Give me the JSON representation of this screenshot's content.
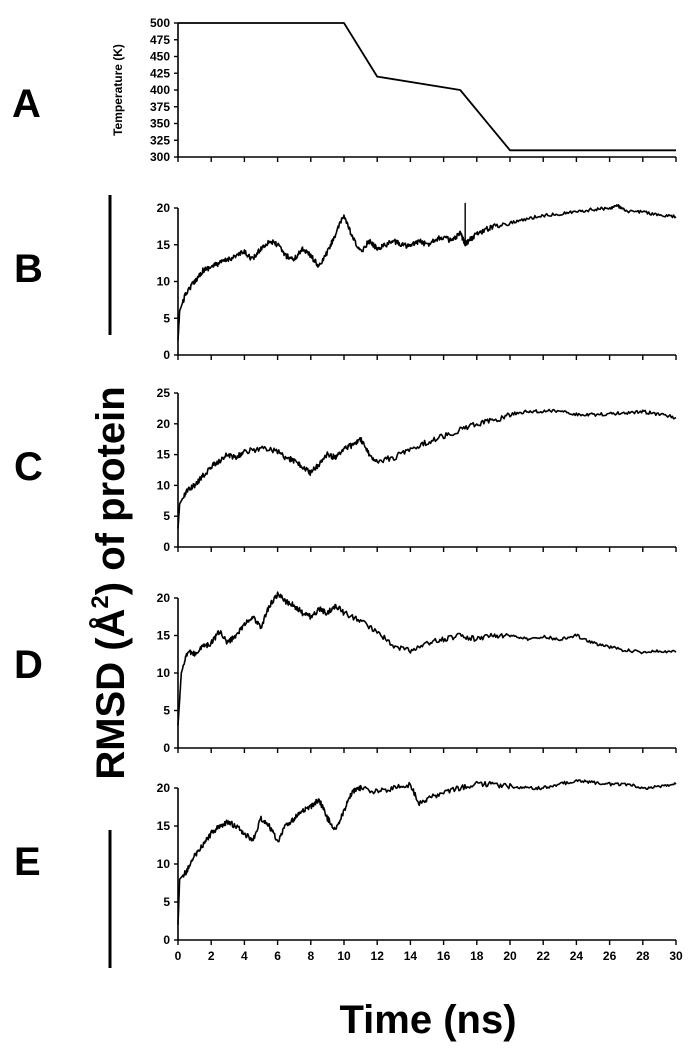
{
  "chart_data": [
    {
      "type": "line",
      "panel": "A",
      "ylabel": "Temperature (K)",
      "xlim": [
        0,
        30
      ],
      "ylim": [
        300,
        500
      ],
      "yticks": [
        300,
        325,
        350,
        375,
        400,
        425,
        450,
        475,
        500
      ],
      "x": [
        0,
        10,
        12,
        17,
        20,
        30
      ],
      "values": [
        500,
        500,
        420,
        400,
        310,
        310
      ]
    },
    {
      "type": "line",
      "panel": "B",
      "xlim": [
        0,
        30
      ],
      "ylim": [
        0,
        20
      ],
      "yticks": [
        0,
        5,
        10,
        15,
        20
      ],
      "x": [
        0,
        0.1,
        0.5,
        1,
        1.5,
        2,
        2.5,
        3,
        3.5,
        4,
        4.5,
        5,
        5.5,
        6,
        6.5,
        7,
        7.5,
        8,
        8.5,
        9,
        9.5,
        10,
        10.5,
        11,
        11.5,
        12,
        12.5,
        13,
        13.5,
        14,
        14.5,
        15,
        15.5,
        16,
        16.5,
        17,
        17.3,
        17.5,
        18,
        18.5,
        19,
        20,
        21,
        22,
        23,
        24,
        25,
        26,
        26.5,
        27,
        28,
        29,
        30
      ],
      "values": [
        2,
        6,
        8.5,
        10,
        11.5,
        12,
        12.5,
        13,
        13.5,
        14,
        13,
        14.5,
        15.5,
        15,
        13.5,
        13,
        14.5,
        13.5,
        12,
        14,
        16.5,
        19,
        16,
        14,
        15.5,
        14.5,
        15,
        15.5,
        15,
        14.8,
        15.5,
        15,
        15.8,
        16,
        15.5,
        16.5,
        15.2,
        15.5,
        16.5,
        17,
        17.5,
        18,
        18.5,
        19,
        19.2,
        19.5,
        19.8,
        20,
        20.3,
        19.5,
        19.5,
        19,
        18.8
      ]
    },
    {
      "type": "line",
      "panel": "C",
      "xlim": [
        0,
        30
      ],
      "ylim": [
        0,
        25
      ],
      "yticks": [
        0,
        5,
        10,
        15,
        20,
        25
      ],
      "x": [
        0,
        0.1,
        0.5,
        1,
        1.5,
        2,
        2.5,
        3,
        3.5,
        4,
        5,
        6,
        6.5,
        7,
        7.5,
        8,
        8.5,
        9,
        9.5,
        10,
        10.5,
        11,
        11.5,
        12,
        13,
        14,
        15,
        16,
        17,
        18,
        19,
        20,
        21,
        22,
        23,
        24,
        25,
        26,
        27,
        28,
        29,
        30
      ],
      "values": [
        3,
        7,
        9,
        10,
        11.5,
        13,
        14,
        15,
        14.5,
        15.5,
        16,
        15.5,
        14.5,
        14,
        13,
        12,
        13.5,
        15,
        14.5,
        16,
        16.5,
        17.5,
        15,
        14,
        14.5,
        16,
        17,
        18,
        19,
        20,
        20.5,
        21.5,
        22,
        22,
        22.2,
        21.5,
        21.5,
        21.6,
        21.8,
        22,
        21.5,
        21
      ]
    },
    {
      "type": "line",
      "panel": "D",
      "xlim": [
        0,
        30
      ],
      "ylim": [
        0,
        20
      ],
      "yticks": [
        0,
        5,
        10,
        15,
        20
      ],
      "x": [
        0,
        0.2,
        0.6,
        1,
        1.5,
        2,
        2.5,
        3,
        3.5,
        4,
        4.5,
        5,
        5.5,
        6,
        6.5,
        7,
        7.5,
        8,
        8.5,
        9,
        9.5,
        10,
        11,
        12,
        13,
        14,
        15,
        16,
        17,
        18,
        19,
        20,
        21,
        22,
        23,
        24,
        25,
        26,
        27,
        28,
        29,
        30
      ],
      "values": [
        3,
        10,
        13,
        12.5,
        13.5,
        14,
        15.5,
        14,
        15,
        16.5,
        17.5,
        16,
        19,
        20.5,
        19.5,
        19,
        18,
        17.5,
        18.5,
        18,
        19,
        18,
        17,
        15.5,
        13.5,
        13,
        14,
        14.5,
        15,
        14.5,
        15,
        15,
        14.5,
        14.8,
        14.5,
        15,
        14,
        13.5,
        13,
        12.8,
        13,
        12.8
      ]
    },
    {
      "type": "line",
      "panel": "E",
      "xlabel": "Time (ns)",
      "xlim": [
        0,
        30
      ],
      "ylim": [
        0,
        20
      ],
      "yticks": [
        0,
        5,
        10,
        15,
        20
      ],
      "xticks": [
        0,
        2,
        4,
        6,
        8,
        10,
        12,
        14,
        16,
        18,
        20,
        22,
        24,
        26,
        28,
        30
      ],
      "x": [
        0,
        0.1,
        0.5,
        1,
        1.5,
        2,
        2.5,
        3,
        3.5,
        4,
        4.5,
        5,
        5.5,
        6,
        6.5,
        7,
        7.5,
        8,
        8.5,
        9,
        9.5,
        10,
        10.5,
        11,
        12,
        13,
        14,
        14.5,
        15,
        16,
        17,
        18,
        19,
        20,
        21,
        22,
        23,
        24,
        25,
        26,
        27,
        28,
        29,
        30
      ],
      "values": [
        2,
        8,
        9,
        11,
        12.5,
        14,
        15,
        15.5,
        15,
        14,
        13,
        16,
        15,
        13,
        15,
        16,
        17,
        17.5,
        18.5,
        16,
        14.5,
        17,
        19.5,
        20,
        19.5,
        20,
        20.5,
        18,
        18.5,
        19.5,
        20,
        20.5,
        20.5,
        20.2,
        20,
        20,
        20.5,
        21,
        20.7,
        20.5,
        20.5,
        20,
        20.2,
        20.5
      ]
    }
  ],
  "shared_ylabel": "RMSD (Å²) of protein",
  "shared_ylabel_parts": {
    "pre": "RMSD (Å",
    "sup": "2",
    "post": ") of protein"
  }
}
